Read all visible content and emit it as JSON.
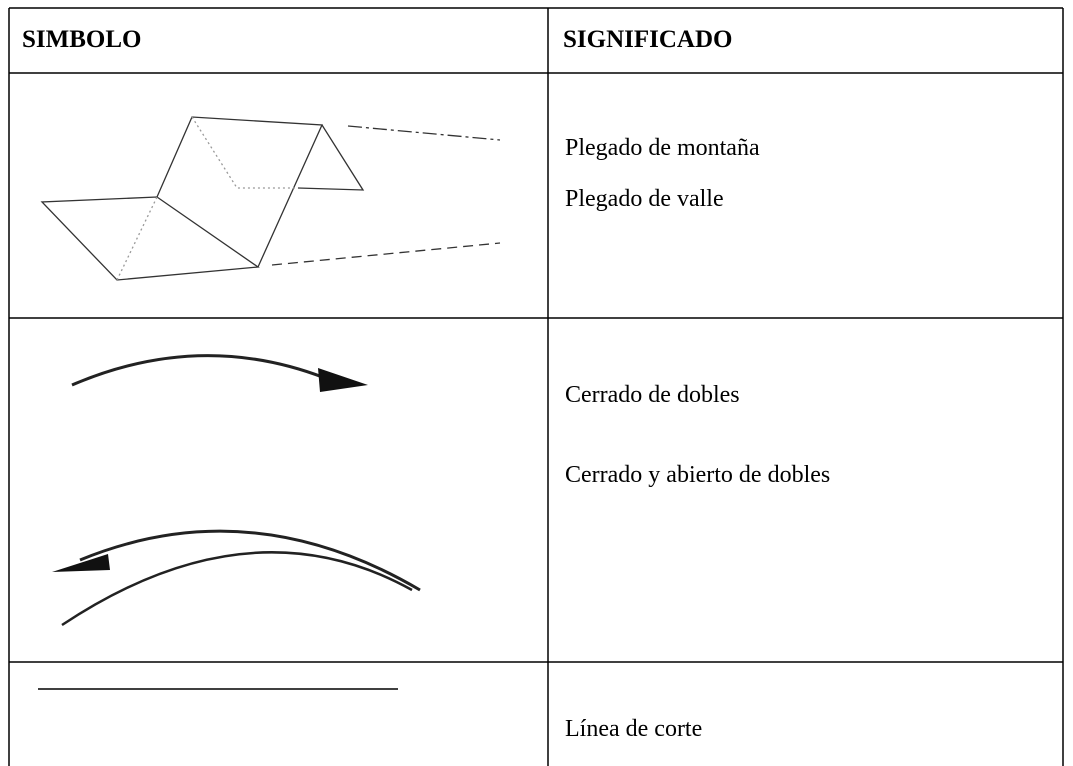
{
  "table": {
    "header": [
      "SIMBOLO",
      "SIGNIFICADO"
    ],
    "rows": [
      {
        "meanings": [
          "Plegado de montaña",
          "Plegado de valle"
        ]
      },
      {
        "meanings": [
          "Cerrado de dobles",
          "Cerrado y abierto de dobles"
        ]
      },
      {
        "meanings": [
          "Línea de corte"
        ]
      }
    ]
  }
}
